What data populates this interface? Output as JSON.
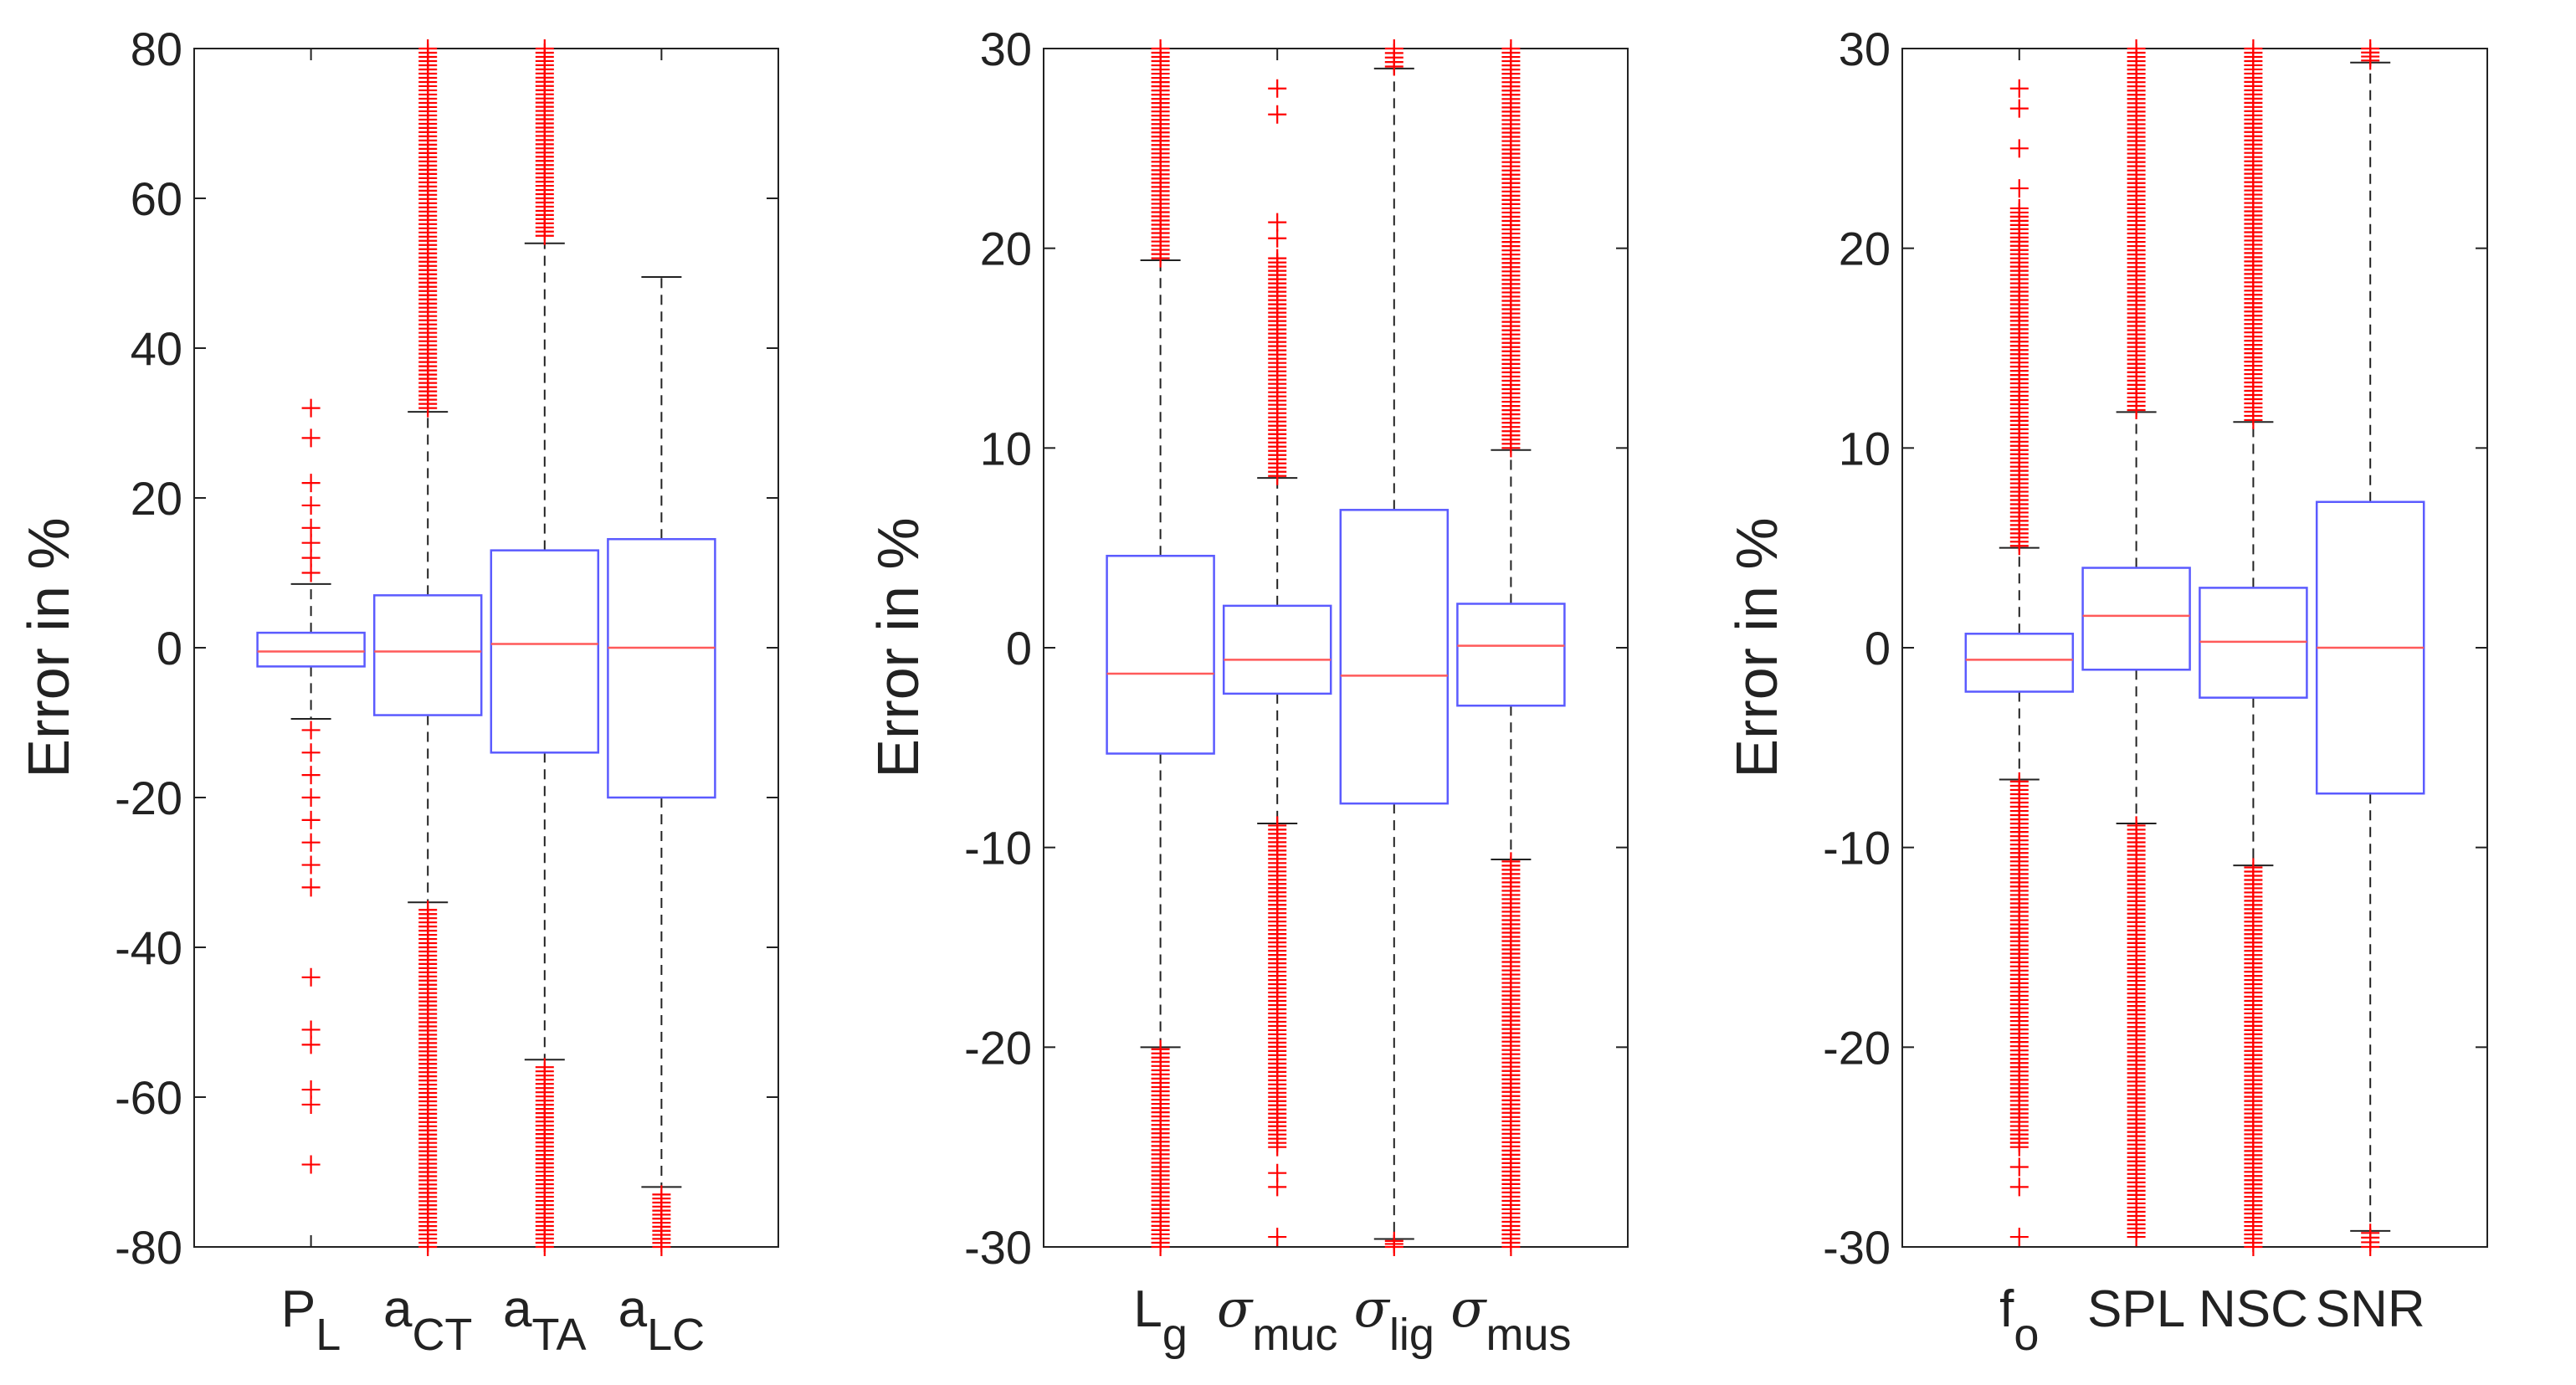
{
  "figure": {
    "colors": {
      "box": "#5b5bff",
      "median": "#ff5a5a",
      "outlier": "#ff0000",
      "whisker": "#222222",
      "axis": "#222222"
    }
  },
  "chart_data": [
    {
      "type": "boxplot",
      "ylabel": "Error in %",
      "ylim": [
        -80,
        80
      ],
      "yticks": [
        80,
        60,
        40,
        20,
        0,
        -20,
        -40,
        -60,
        -80
      ],
      "categories": [
        {
          "base": "P",
          "sub": "L"
        },
        {
          "base": "a",
          "sub": "CT"
        },
        {
          "base": "a",
          "sub": "TA"
        },
        {
          "base": "a",
          "sub": "LC"
        }
      ],
      "boxes": [
        {
          "q1": -2.5,
          "median": -0.5,
          "q3": 2,
          "whisker_low": -9.5,
          "whisker_high": 8.5,
          "outliers": [
            32,
            28,
            22,
            19,
            16,
            14,
            12,
            10,
            -11,
            -14,
            -17,
            -20,
            -23,
            -26,
            -29,
            -32,
            -44,
            -51,
            -53,
            -59,
            -61,
            -69
          ]
        },
        {
          "q1": -9,
          "median": -0.5,
          "q3": 7,
          "whisker_low": -34,
          "whisker_high": 31.5,
          "outlier_bands": [
            [
              32,
              80
            ],
            [
              -80,
              -35
            ]
          ]
        },
        {
          "q1": -14,
          "median": 0.5,
          "q3": 13,
          "whisker_low": -55,
          "whisker_high": 54,
          "outlier_bands": [
            [
              55,
              80
            ],
            [
              -80,
              -56
            ]
          ]
        },
        {
          "q1": -20,
          "median": 0,
          "q3": 14.5,
          "whisker_low": -72,
          "whisker_high": 49.5,
          "outlier_bands": [
            [
              -80,
              -73
            ]
          ]
        }
      ]
    },
    {
      "type": "boxplot",
      "ylabel": "Error in %",
      "ylim": [
        -30,
        30
      ],
      "yticks": [
        30,
        20,
        10,
        0,
        -10,
        -20,
        -30
      ],
      "categories": [
        {
          "base": "L",
          "sub": "g"
        },
        {
          "base": "σ",
          "sub": "muc"
        },
        {
          "base": "σ",
          "sub": "lig"
        },
        {
          "base": "σ",
          "sub": "mus"
        }
      ],
      "boxes": [
        {
          "q1": -5.3,
          "median": -1.3,
          "q3": 4.6,
          "whisker_low": -20,
          "whisker_high": 19.4,
          "outlier_bands": [
            [
              19.5,
              30
            ],
            [
              -30,
              -20.1
            ]
          ]
        },
        {
          "q1": -2.3,
          "median": -0.6,
          "q3": 2.1,
          "whisker_low": -8.8,
          "whisker_high": 8.5,
          "outliers": [
            28,
            26.7,
            21.3,
            20.5
          ],
          "outlier_bands": [
            [
              8.6,
              19.5
            ],
            [
              -25,
              -8.9
            ]
          ],
          "outliers_low_extra": [
            -26.3,
            -27,
            -29.5
          ]
        },
        {
          "q1": -7.8,
          "median": -1.4,
          "q3": 6.9,
          "whisker_low": -29.6,
          "whisker_high": 29,
          "outlier_bands": [
            [
              29.1,
              30
            ],
            [
              -30,
              -29.7
            ]
          ]
        },
        {
          "q1": -2.9,
          "median": 0.1,
          "q3": 2.2,
          "whisker_low": -10.6,
          "whisker_high": 9.9,
          "outlier_bands": [
            [
              10,
              30
            ],
            [
              -30,
              -10.7
            ]
          ]
        }
      ]
    },
    {
      "type": "boxplot",
      "ylabel": "Error in %",
      "ylim": [
        -30,
        30
      ],
      "yticks": [
        30,
        20,
        10,
        0,
        -10,
        -20,
        -30
      ],
      "categories": [
        {
          "base": "f",
          "sub": "o"
        },
        {
          "base": "SPL",
          "sub": ""
        },
        {
          "base": "NSC",
          "sub": ""
        },
        {
          "base": "SNR",
          "sub": ""
        }
      ],
      "boxes": [
        {
          "q1": -2.2,
          "median": -0.6,
          "q3": 0.7,
          "whisker_low": -6.6,
          "whisker_high": 5,
          "outliers": [
            28,
            27,
            25,
            23,
            -26,
            -27,
            -29.5
          ],
          "outlier_bands": [
            [
              5.1,
              22
            ],
            [
              -25,
              -6.7
            ]
          ]
        },
        {
          "q1": -1.1,
          "median": 1.6,
          "q3": 4,
          "whisker_low": -8.8,
          "whisker_high": 11.8,
          "outlier_bands": [
            [
              11.9,
              30
            ],
            [
              -29.5,
              -8.9
            ]
          ]
        },
        {
          "q1": -2.5,
          "median": 0.3,
          "q3": 3,
          "whisker_low": -10.9,
          "whisker_high": 11.3,
          "outlier_bands": [
            [
              11.4,
              30
            ],
            [
              -30,
              -11
            ]
          ]
        },
        {
          "q1": -7.3,
          "median": 0,
          "q3": 7.3,
          "whisker_low": -29.2,
          "whisker_high": 29.3,
          "outlier_bands": [
            [
              29.4,
              30
            ],
            [
              -30,
              -29.3
            ]
          ]
        }
      ]
    }
  ]
}
